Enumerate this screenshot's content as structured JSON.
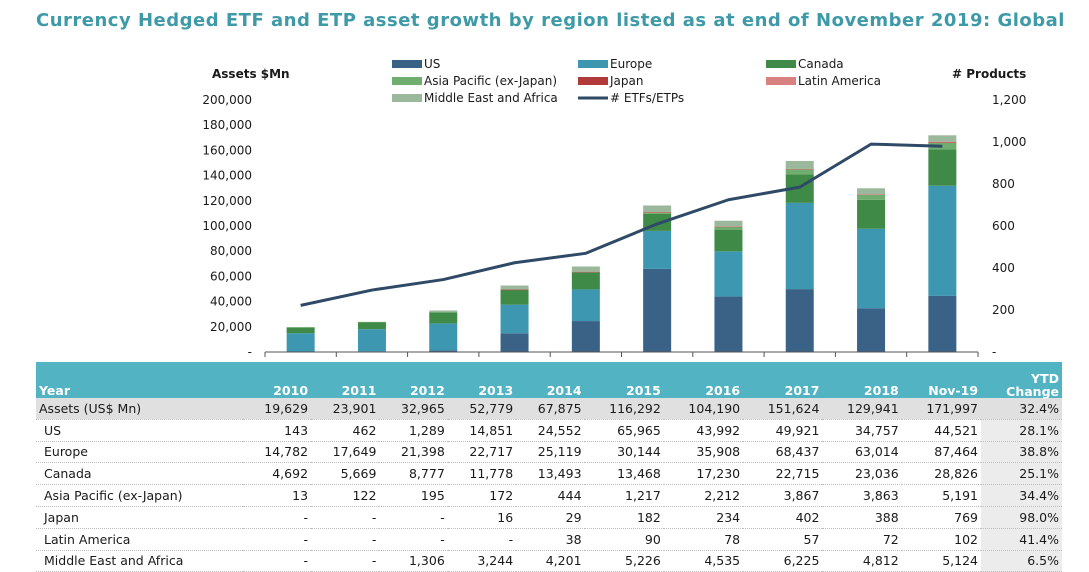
{
  "title": "Currency Hedged ETF and ETP asset growth by region listed as at end of November 2019: Global",
  "chart_data": {
    "type": "bar",
    "stacked": true,
    "categories": [
      "2010",
      "2011",
      "2012",
      "2013",
      "2014",
      "2015",
      "2016",
      "2017",
      "2018",
      "Nov-19"
    ],
    "ylabel_left": "Assets $Mn",
    "ylabel_right": "# Products",
    "ylim_left": [
      0,
      200000
    ],
    "yticks_left": [
      "-",
      "20,000",
      "40,000",
      "60,000",
      "80,000",
      "100,000",
      "120,000",
      "140,000",
      "160,000",
      "180,000",
      "200,000"
    ],
    "ylim_right": [
      0,
      1200
    ],
    "yticks_right": [
      "-",
      "200",
      "400",
      "600",
      "800",
      "1,000",
      "1,200"
    ],
    "series": [
      {
        "name": "US",
        "color": "#3a6186",
        "values": [
          143,
          462,
          1289,
          14851,
          24552,
          65965,
          43992,
          49921,
          34757,
          44521
        ]
      },
      {
        "name": "Europe",
        "color": "#3e97b0",
        "values": [
          14782,
          17649,
          21398,
          22717,
          25119,
          30144,
          35908,
          68437,
          63014,
          87464
        ]
      },
      {
        "name": "Canada",
        "color": "#3f8a47",
        "values": [
          4692,
          5669,
          8777,
          11778,
          13493,
          13468,
          17230,
          22715,
          23036,
          28826
        ]
      },
      {
        "name": "Asia Pacific (ex-Japan)",
        "color": "#6fae6f",
        "values": [
          13,
          122,
          195,
          172,
          444,
          1217,
          2212,
          3867,
          3863,
          5191
        ]
      },
      {
        "name": "Japan",
        "color": "#b33a3a",
        "values": [
          0,
          0,
          0,
          16,
          29,
          182,
          234,
          402,
          388,
          769
        ]
      },
      {
        "name": "Latin America",
        "color": "#d98080",
        "values": [
          0,
          0,
          0,
          0,
          38,
          90,
          78,
          57,
          72,
          102
        ]
      },
      {
        "name": "Middle East and Africa",
        "color": "#9cb89c",
        "values": [
          0,
          0,
          1306,
          3244,
          4201,
          5226,
          4535,
          6225,
          4812,
          5124
        ]
      }
    ],
    "line_series": {
      "name": "# ETFs/ETPs",
      "color": "#2e4a66",
      "axis": "right",
      "values": [
        222,
        295,
        345,
        425,
        470,
        610,
        725,
        785,
        990,
        980
      ]
    },
    "legend_placement": "top"
  },
  "table": {
    "headers": [
      "Year",
      "2010",
      "2011",
      "2012",
      "2013",
      "2014",
      "2015",
      "2016",
      "2017",
      "2018",
      "Nov-19"
    ],
    "ytd_header_line1": "YTD",
    "ytd_header_line2": "Change",
    "rows": [
      {
        "label": "Assets (US$ Mn)",
        "total": true,
        "values": [
          "19,629",
          "23,901",
          "32,965",
          "52,779",
          "67,875",
          "116,292",
          "104,190",
          "151,624",
          "129,941",
          "171,997"
        ],
        "ytd": "32.4%"
      },
      {
        "label": "US",
        "values": [
          "143",
          "462",
          "1,289",
          "14,851",
          "24,552",
          "65,965",
          "43,992",
          "49,921",
          "34,757",
          "44,521"
        ],
        "ytd": "28.1%"
      },
      {
        "label": "Europe",
        "values": [
          "14,782",
          "17,649",
          "21,398",
          "22,717",
          "25,119",
          "30,144",
          "35,908",
          "68,437",
          "63,014",
          "87,464"
        ],
        "ytd": "38.8%"
      },
      {
        "label": "Canada",
        "values": [
          "4,692",
          "5,669",
          "8,777",
          "11,778",
          "13,493",
          "13,468",
          "17,230",
          "22,715",
          "23,036",
          "28,826"
        ],
        "ytd": "25.1%"
      },
      {
        "label": "Asia Pacific (ex-Japan)",
        "values": [
          "13",
          "122",
          "195",
          "172",
          "444",
          "1,217",
          "2,212",
          "3,867",
          "3,863",
          "5,191"
        ],
        "ytd": "34.4%"
      },
      {
        "label": "Japan",
        "values": [
          "-",
          "-",
          "-",
          "16",
          "29",
          "182",
          "234",
          "402",
          "388",
          "769"
        ],
        "ytd": "98.0%"
      },
      {
        "label": "Latin America",
        "values": [
          "-",
          "-",
          "-",
          "-",
          "38",
          "90",
          "78",
          "57",
          "72",
          "102"
        ],
        "ytd": "41.4%"
      },
      {
        "label": "Middle East and Africa",
        "values": [
          "-",
          "-",
          "1,306",
          "3,244",
          "4,201",
          "5,226",
          "4,535",
          "6,225",
          "4,812",
          "5,124"
        ],
        "ytd": "6.5%"
      }
    ]
  }
}
